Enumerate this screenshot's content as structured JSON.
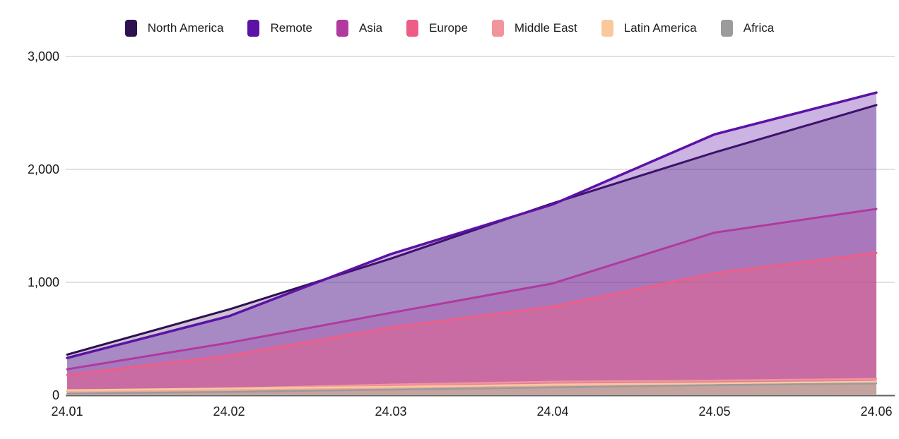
{
  "chart_data": {
    "type": "area",
    "mode": "overlapping",
    "title": "",
    "xlabel": "",
    "ylabel": "",
    "x_labels": [
      "24.01",
      "24.02",
      "24.03",
      "24.04",
      "24.05",
      "24.06"
    ],
    "y_ticks": [
      0,
      1000,
      2000,
      3000
    ],
    "y_tick_labels": [
      "0",
      "1,000",
      "2,000",
      "3,000"
    ],
    "ylim": [
      0,
      3000
    ],
    "grid": true,
    "legend_position": "top",
    "colors": {
      "grid_line": "#c6c6c6",
      "axis_line": "#636363",
      "tick_text": "#1a1a1a"
    },
    "series": [
      {
        "name": "North America",
        "color": "#2e1150",
        "fill_opacity": 0.25,
        "values": [
          360,
          760,
          1210,
          1700,
          2150,
          2570
        ]
      },
      {
        "name": "Remote",
        "color": "#5c12a6",
        "fill_opacity": 0.32,
        "values": [
          330,
          700,
          1250,
          1690,
          2310,
          2680
        ]
      },
      {
        "name": "Asia",
        "color": "#b03a9e",
        "fill_opacity": 0.22,
        "values": [
          230,
          465,
          730,
          990,
          1440,
          1650
        ]
      },
      {
        "name": "Europe",
        "color": "#ee5d86",
        "fill_opacity": 0.45,
        "values": [
          180,
          350,
          600,
          785,
          1080,
          1260
        ]
      },
      {
        "name": "Middle East",
        "color": "#f2949c",
        "fill_opacity": 0.5,
        "values": [
          35,
          60,
          95,
          120,
          130,
          145
        ]
      },
      {
        "name": "Latin America",
        "color": "#f9c99d",
        "fill_opacity": 0.55,
        "values": [
          45,
          60,
          75,
          95,
          105,
          120
        ]
      },
      {
        "name": "Africa",
        "color": "#9b9b9b",
        "fill_opacity": 0.5,
        "values": [
          15,
          30,
          50,
          70,
          90,
          105
        ]
      }
    ]
  }
}
